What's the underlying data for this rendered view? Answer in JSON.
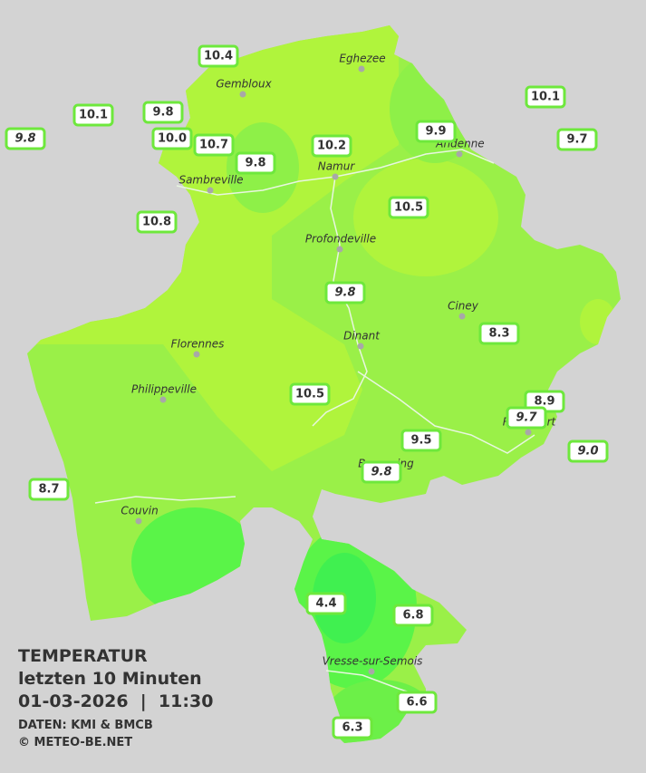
{
  "legend": {
    "title": "TEMPERATUR",
    "subtitle": "letzten 10 Minuten",
    "datetime": "01-03-2026  |  11:30",
    "source": "DATEN: KMI & BMCB",
    "copyright": "© METEO-BE.NET"
  },
  "stations": [
    {
      "value": "10.4"
    },
    {
      "value": "10.1"
    },
    {
      "value": "10.1"
    },
    {
      "value": "9.8"
    },
    {
      "value": "9.8",
      "italic": true
    },
    {
      "value": "9.9"
    },
    {
      "value": "9.7"
    },
    {
      "value": "10.0"
    },
    {
      "value": "10.7"
    },
    {
      "value": "10.2"
    },
    {
      "value": "9.8"
    },
    {
      "value": "10.5"
    },
    {
      "value": "10.8"
    },
    {
      "value": "9.8",
      "italic": true
    },
    {
      "value": "8.3"
    },
    {
      "value": "10.5"
    },
    {
      "value": "8.9"
    },
    {
      "value": "9.7",
      "italic": true
    },
    {
      "value": "9.0",
      "italic": true
    },
    {
      "value": "9.5"
    },
    {
      "value": "9.8",
      "italic": true
    },
    {
      "value": "8.7"
    },
    {
      "value": "4.4"
    },
    {
      "value": "6.8"
    },
    {
      "value": "6.6"
    },
    {
      "value": "6.3"
    }
  ],
  "cities": [
    "Eghezee",
    "Gembloux",
    "Andenne",
    "Namur",
    "Sambreville",
    "Profondeville",
    "Ciney",
    "Dinant",
    "Florennes",
    "Philippeville",
    "Rochefort",
    "Beauraing",
    "Couvin",
    "Vresse-sur-Semois"
  ]
}
